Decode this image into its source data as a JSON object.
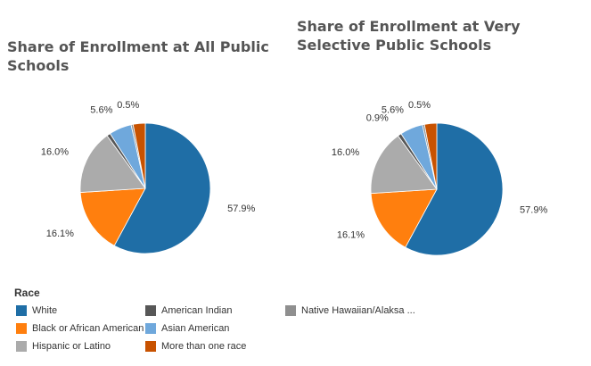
{
  "chart_data": [
    {
      "type": "pie",
      "title": "Share of Enrollment at All Public Schools",
      "categories": [
        "White",
        "Black or African American",
        "Hispanic or Latino",
        "American Indian",
        "Asian American",
        "Native Hawaiian/Alaksa ...",
        "More than one race"
      ],
      "values": [
        57.9,
        16.1,
        16.0,
        0.9,
        5.6,
        0.5,
        3.0
      ],
      "value_labels": [
        "57.9%",
        "16.1%",
        "16.0%",
        null,
        "5.6%",
        "0.5%",
        null
      ],
      "colors": [
        "#1f6ea6",
        "#ff7f0e",
        "#ababab",
        "#575757",
        "#6fa8dc",
        "#8f8f8f",
        "#c85200"
      ],
      "legend_title": "Race"
    },
    {
      "type": "pie",
      "title": "Share of Enrollment at Very Selective Public Schools",
      "categories": [
        "White",
        "Black or African American",
        "Hispanic or Latino",
        "American Indian",
        "Asian American",
        "Native Hawaiian/Alaksa ...",
        "More than one race"
      ],
      "values": [
        57.9,
        16.1,
        16.0,
        0.9,
        5.6,
        0.5,
        3.0
      ],
      "value_labels": [
        "57.9%",
        "16.1%",
        "16.0%",
        "0.9%",
        "5.6%",
        "0.5%",
        null
      ],
      "colors": [
        "#1f6ea6",
        "#ff7f0e",
        "#ababab",
        "#575757",
        "#6fa8dc",
        "#8f8f8f",
        "#c85200"
      ]
    }
  ]
}
